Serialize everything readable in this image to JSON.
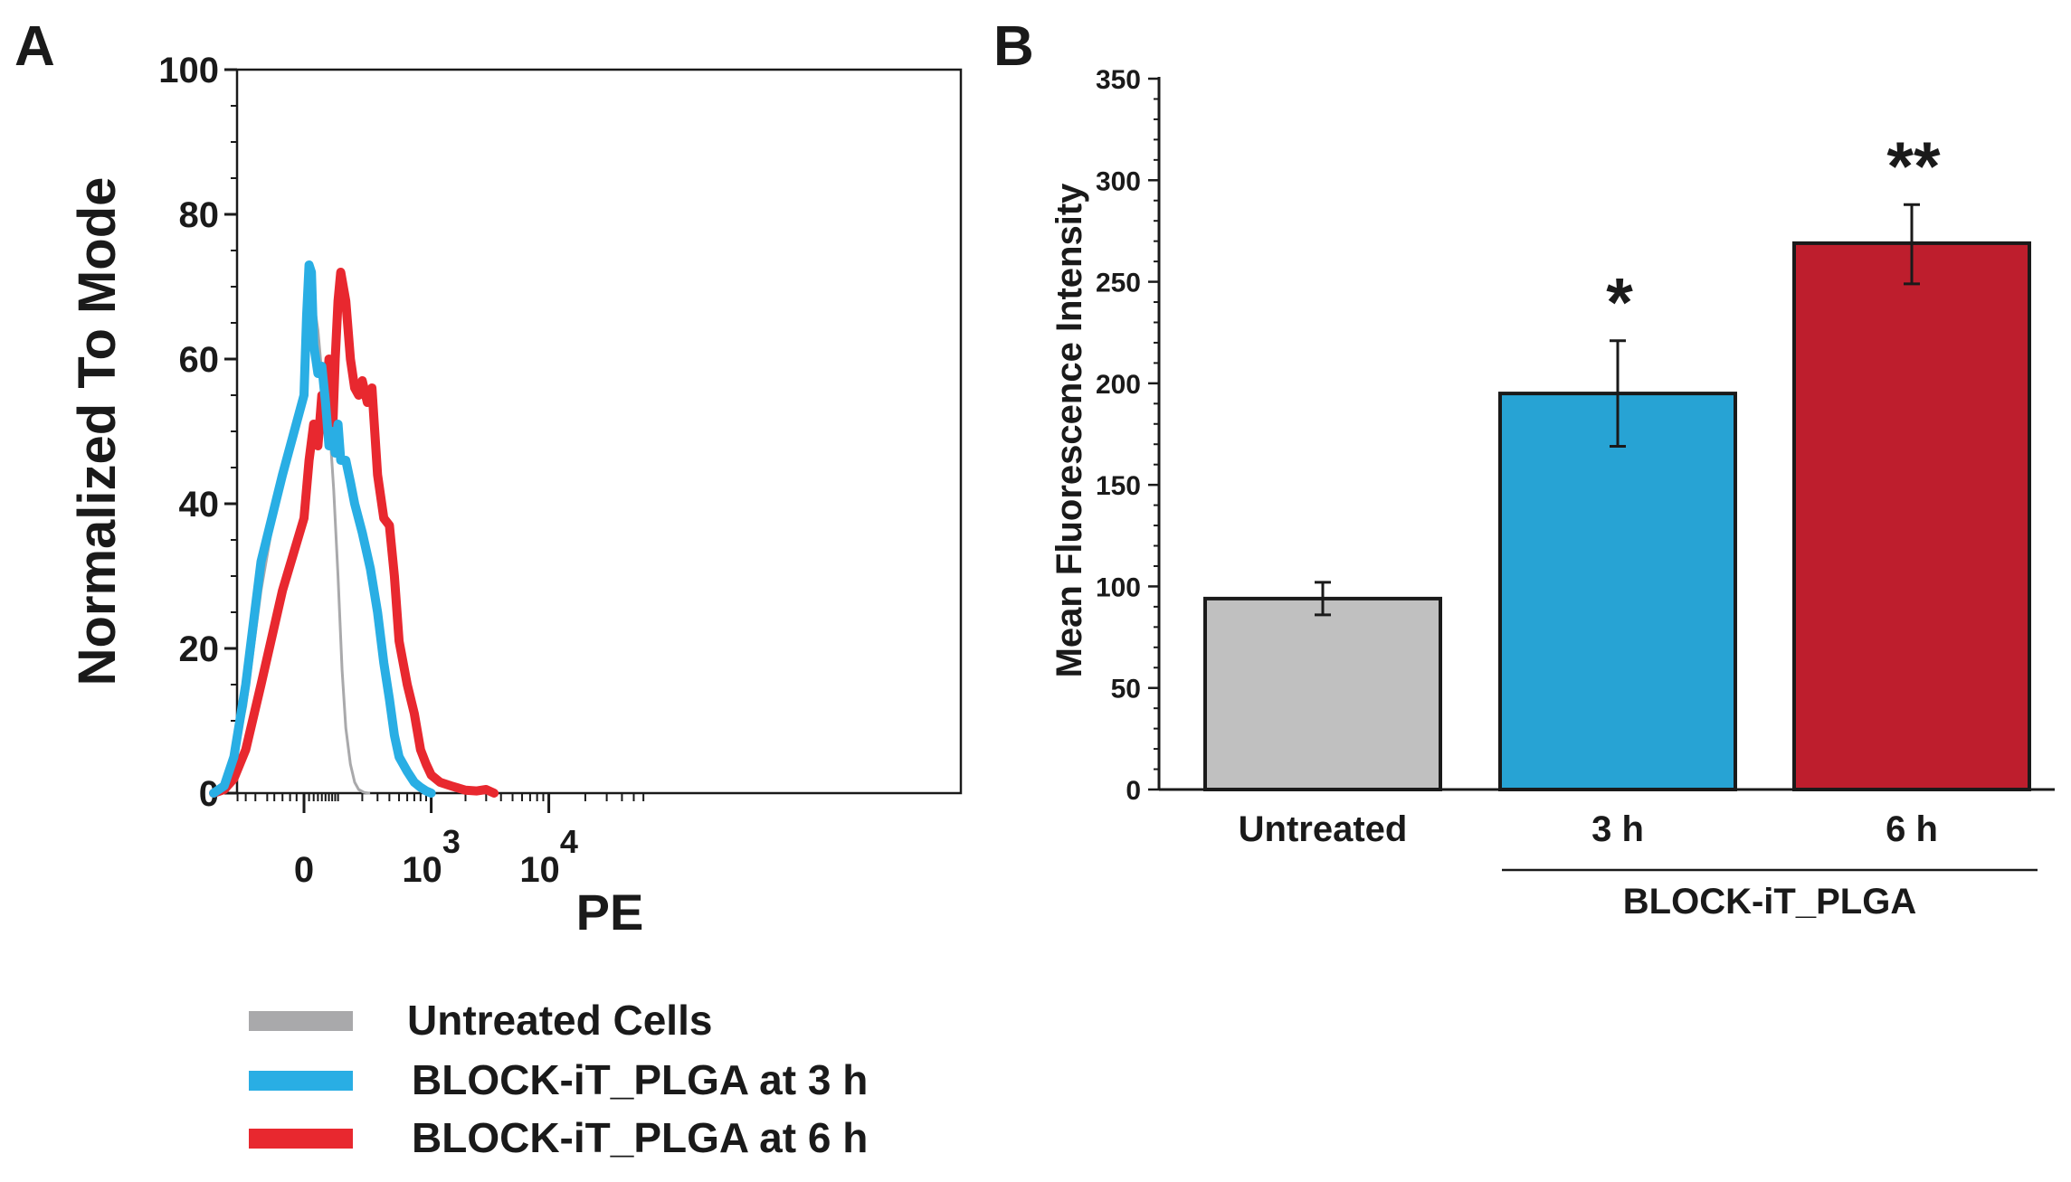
{
  "colors": {
    "untreated": "#a9a9ab",
    "three_h": "#29aee4",
    "six_h": "#e8282f",
    "bar_untreated": "#c0c0c0",
    "bar_three_h": "#27a3d4",
    "bar_six_h": "#be1e2d",
    "axis": "#1a1a1a"
  },
  "chart_data": [
    {
      "panel_label": "A",
      "type": "line",
      "xlabel": "PE",
      "ylabel": "Normalized To Mode",
      "ylim": [
        0,
        100
      ],
      "y_ticks": [
        {
          "value": 0,
          "label": "0"
        },
        {
          "value": 20,
          "label": "20"
        },
        {
          "value": 40,
          "label": "40"
        },
        {
          "value": 60,
          "label": "60"
        },
        {
          "value": 80,
          "label": "80"
        },
        {
          "value": 100,
          "label": "100"
        }
      ],
      "x_scale": "biexponential",
      "x_ticks": [
        {
          "value": 0,
          "base": "0",
          "exp": ""
        },
        {
          "value": 1000,
          "base": "10",
          "exp": "3"
        },
        {
          "value": 10000,
          "base": "10",
          "exp": "4"
        }
      ],
      "legend": [
        {
          "label": "Untreated Cells",
          "color_key": "untreated"
        },
        {
          "label": "BLOCK-iT_PLGA at 3 h",
          "color_key": "three_h"
        },
        {
          "label": "BLOCK-iT_PLGA at 6 h",
          "color_key": "six_h"
        }
      ],
      "series": [
        {
          "name": "Untreated Cells",
          "color_key": "untreated",
          "x": [
            -90,
            -70,
            -55,
            -40,
            -25,
            -10,
            0,
            10,
            20,
            30,
            40,
            50,
            60,
            75,
            90,
            105,
            120,
            140,
            160,
            180,
            210,
            240
          ],
          "y": [
            0,
            1,
            4,
            12,
            28,
            45,
            55,
            64,
            68,
            64,
            58,
            56,
            52,
            42,
            30,
            17,
            9,
            4,
            1.5,
            0.5,
            0.1,
            0
          ]
        },
        {
          "name": "BLOCK-iT_PLGA at 3 h",
          "color_key": "three_h",
          "x": [
            -90,
            -70,
            -55,
            -40,
            -25,
            -10,
            0,
            5,
            10,
            15,
            20,
            30,
            40,
            50,
            60,
            70,
            80,
            90,
            100,
            120,
            140,
            160,
            200,
            250,
            300,
            350,
            400,
            450,
            500,
            600,
            700,
            800,
            900,
            1000
          ],
          "y": [
            0,
            1,
            5,
            15,
            32,
            44,
            55,
            66,
            73,
            72,
            62,
            58,
            59,
            54,
            48,
            50,
            47,
            51,
            46,
            46,
            43,
            40,
            36,
            31,
            25,
            18,
            13,
            8,
            5,
            3,
            1.5,
            0.8,
            0.3,
            0
          ]
        },
        {
          "name": "BLOCK-iT_PLGA at 6 h",
          "color_key": "six_h",
          "x": [
            -90,
            -70,
            -55,
            -40,
            -25,
            -10,
            0,
            10,
            20,
            30,
            40,
            50,
            60,
            70,
            80,
            90,
            100,
            120,
            140,
            160,
            180,
            200,
            230,
            260,
            300,
            350,
            400,
            450,
            500,
            600,
            700,
            800,
            900,
            1000,
            1200,
            1500,
            2000,
            2500,
            3000,
            3500
          ],
          "y": [
            0,
            0.5,
            2,
            6,
            15,
            28,
            38,
            46,
            51,
            48,
            55,
            52,
            60,
            48,
            60,
            68,
            72,
            68,
            60,
            56,
            55,
            57,
            54,
            56,
            44,
            38,
            37,
            30,
            21,
            15,
            11,
            6,
            4,
            2.5,
            1.5,
            1,
            0.4,
            0.3,
            0.5,
            0
          ]
        }
      ]
    },
    {
      "panel_label": "B",
      "type": "bar",
      "ylabel": "Mean  Fluorescence Intensity",
      "ylim": [
        0,
        350
      ],
      "y_ticks": [
        0,
        50,
        100,
        150,
        200,
        250,
        300,
        350
      ],
      "categories": [
        "Untreated",
        "3 h",
        "6 h"
      ],
      "values": [
        94,
        195,
        269
      ],
      "errors_upper": [
        102,
        221,
        288
      ],
      "errors_lower": [
        86,
        169,
        249
      ],
      "bar_color_keys": [
        "bar_untreated",
        "bar_three_h",
        "bar_six_h"
      ],
      "significance": [
        "",
        "*",
        "**"
      ],
      "group_label": "BLOCK-iT_PLGA"
    }
  ]
}
